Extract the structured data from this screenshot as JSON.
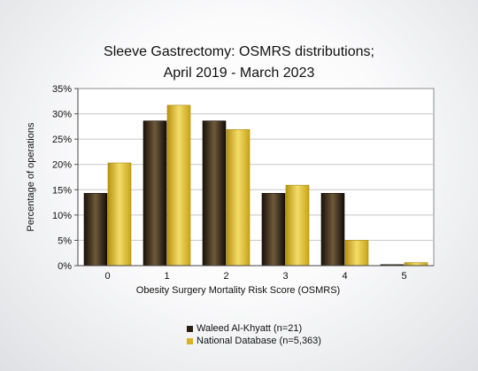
{
  "chart_data": {
    "type": "bar",
    "title_line1": "Sleeve Gastrectomy: OSMRS distributions;",
    "title_line2": "April 2019 - March 2023",
    "xlabel": "Obesity Surgery Mortality Risk Score (OSMRS)",
    "ylabel": "Percentage of operations",
    "categories": [
      "0",
      "1",
      "2",
      "3",
      "4",
      "5"
    ],
    "yticks": [
      "0%",
      "5%",
      "10%",
      "15%",
      "20%",
      "25%",
      "30%",
      "35%"
    ],
    "ylim": [
      0,
      35
    ],
    "grid": true,
    "legend_position": "bottom",
    "series": [
      {
        "name": "Waleed Al-Khyatt (n=21)",
        "values": [
          14.3,
          28.6,
          28.6,
          14.3,
          14.3,
          0.2
        ],
        "color": "#2a1d12"
      },
      {
        "name": "National Database (n=5,363)",
        "values": [
          20.3,
          31.7,
          26.9,
          15.9,
          5.0,
          0.6
        ],
        "color": "#d7b31e"
      }
    ]
  }
}
